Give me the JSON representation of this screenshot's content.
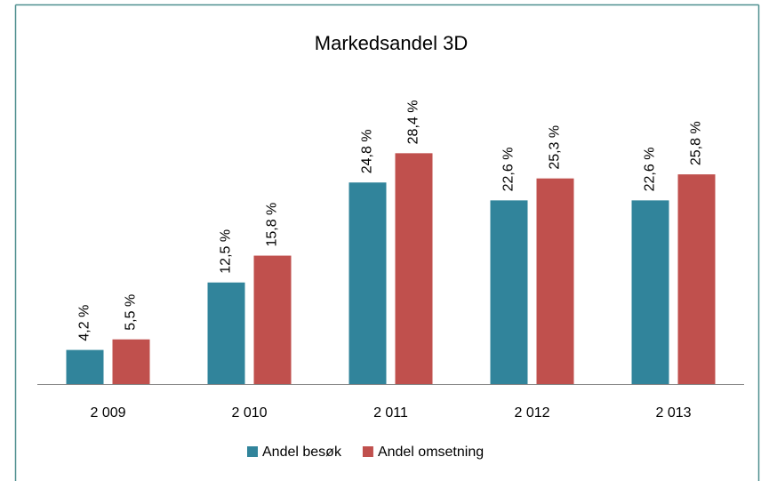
{
  "chart_data": {
    "type": "bar",
    "title": "Markedsandel 3D",
    "categories": [
      "2 009",
      "2 010",
      "2 011",
      "2 012",
      "2 013"
    ],
    "series": [
      {
        "name": "Andel besøk",
        "color": "#31849b",
        "values": [
          4.2,
          12.5,
          24.8,
          22.6,
          22.6
        ],
        "value_labels": [
          "4,2 %",
          "12,5 %",
          "24,8 %",
          "22,6 %",
          "22,6 %"
        ]
      },
      {
        "name": "Andel omsetning",
        "color": "#c0504d",
        "values": [
          5.5,
          15.8,
          28.4,
          25.3,
          25.8
        ],
        "value_labels": [
          "5,5 %",
          "15,8 %",
          "28,4 %",
          "25,3 %",
          "25,8 %"
        ]
      }
    ],
    "ylim": [
      0,
      35
    ],
    "grid": false,
    "legend": "bottom"
  }
}
